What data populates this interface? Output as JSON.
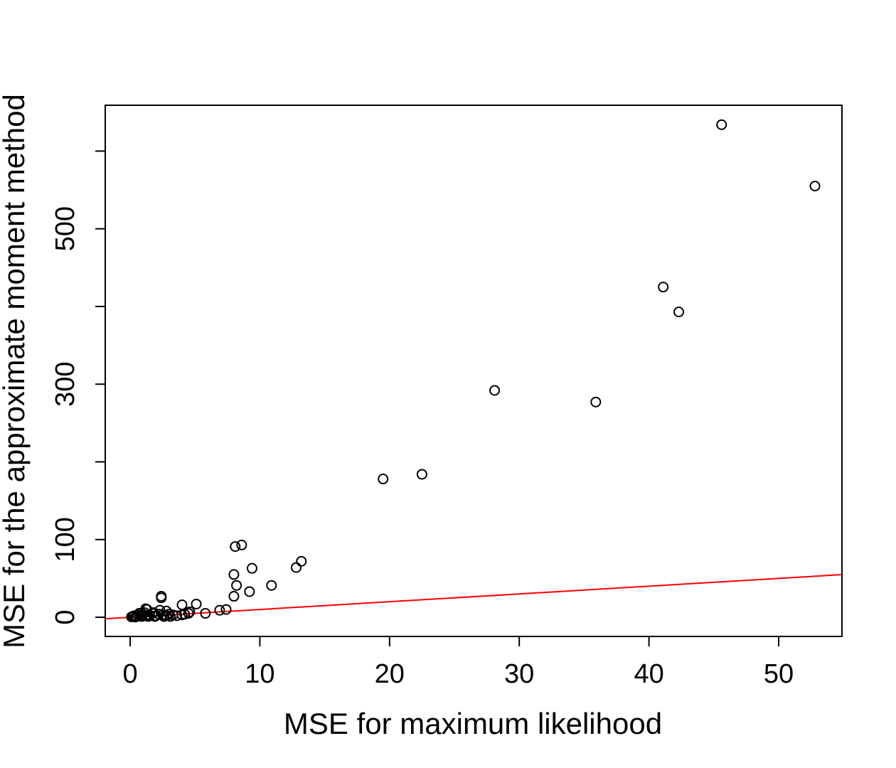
{
  "chart_data": {
    "type": "scatter",
    "xlabel": "MSE for maximum likelihood",
    "ylabel": "MSE for the approximate moment method",
    "xlim": [
      -1.92,
      54.88
    ],
    "ylim": [
      -24.7,
      659
    ],
    "xticks": [
      0,
      10,
      20,
      30,
      40,
      50
    ],
    "yticks": [
      0,
      100,
      300,
      500
    ],
    "yticks_unlabeled": [
      200,
      400,
      600
    ],
    "color": "#000000",
    "reference_line": {
      "intercept": 0,
      "slope": 1,
      "color": "#ff0000"
    },
    "x": [
      45.6,
      52.8,
      41.1,
      42.3,
      28.1,
      35.9,
      19.5,
      22.5,
      8.1,
      8.6,
      9.4,
      8.0,
      8.2,
      8.0,
      9.2,
      10.9,
      12.8,
      13.2,
      2.4,
      2.4,
      4.0,
      5.1,
      5.8,
      6.9,
      7.4,
      1.2,
      1.3,
      4.5,
      4.6,
      2.3,
      2.8,
      0.1,
      0.2,
      0.3,
      0.5,
      0.6,
      0.8,
      1.0,
      1.2,
      1.5,
      1.7,
      2.0,
      2.2,
      2.5,
      2.8,
      3.0,
      3.3,
      3.6,
      4.0,
      4.2,
      0.4,
      0.9,
      1.4,
      1.9,
      2.6,
      3.1,
      0.7,
      1.1,
      1.8
    ],
    "y": [
      634,
      555,
      425,
      393,
      292,
      277,
      178,
      184,
      91,
      93,
      63,
      55,
      41,
      27,
      33,
      41,
      64,
      72,
      27,
      25,
      16,
      17,
      5,
      9,
      10,
      11,
      10,
      5,
      7,
      9,
      8,
      0.5,
      1,
      2,
      1,
      3,
      2,
      4,
      2,
      3,
      5,
      2,
      4,
      3,
      2,
      4,
      3,
      2,
      3,
      4,
      0.2,
      1,
      1,
      1,
      1,
      1,
      5,
      6,
      6
    ]
  }
}
